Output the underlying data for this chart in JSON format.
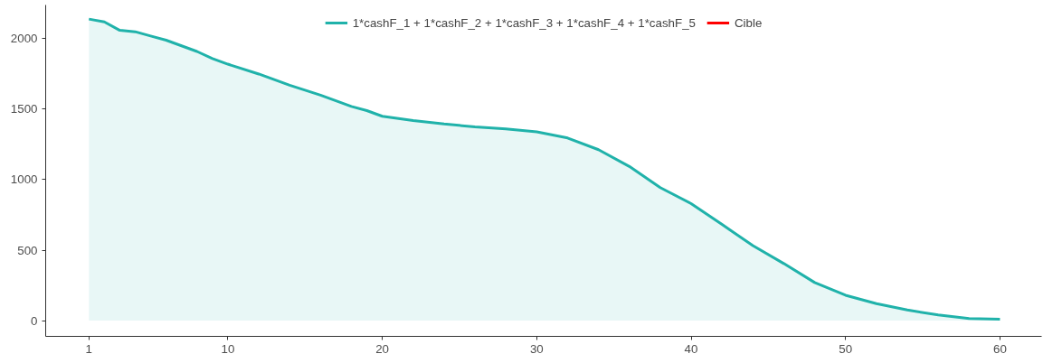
{
  "chart_data": {
    "type": "area",
    "x": [
      1,
      2,
      3,
      4,
      5,
      6,
      7,
      8,
      9,
      10,
      12,
      14,
      16,
      18,
      19,
      20,
      22,
      24,
      26,
      28,
      30,
      32,
      34,
      36,
      38,
      40,
      42,
      44,
      46,
      48,
      50,
      52,
      54,
      56,
      58,
      60
    ],
    "series": [
      {
        "name": "1*cashF_1 + 1*cashF_2 + 1*cashF_3 + 1*cashF_4 + 1*cashF_5",
        "color": "#20b2aa",
        "values": [
          2140,
          2120,
          2060,
          2050,
          2020,
          1990,
          1950,
          1910,
          1860,
          1820,
          1750,
          1670,
          1600,
          1520,
          1490,
          1450,
          1420,
          1395,
          1375,
          1360,
          1340,
          1296,
          1213,
          1094,
          944,
          830,
          682,
          532,
          405,
          270,
          180,
          120,
          75,
          40,
          15,
          10
        ]
      },
      {
        "name": "Cible",
        "color": "#ff0000",
        "type": "line",
        "values": [
          null,
          null,
          null,
          null,
          null,
          null,
          null,
          null,
          null,
          null,
          null,
          null,
          null,
          null,
          null,
          null,
          null,
          null,
          null,
          null,
          null,
          null,
          null,
          null,
          null,
          null,
          null,
          null,
          null,
          null,
          null,
          null,
          null,
          null,
          null,
          null
        ]
      }
    ],
    "xlim": [
      -1.8,
      62.7
    ],
    "xticks": [
      1,
      10,
      20,
      30,
      40,
      50,
      60
    ],
    "ylim": [
      -112,
      2240
    ],
    "yticks": [
      0,
      500,
      1000,
      1500,
      2000
    ],
    "grid": false,
    "legend": "top"
  }
}
